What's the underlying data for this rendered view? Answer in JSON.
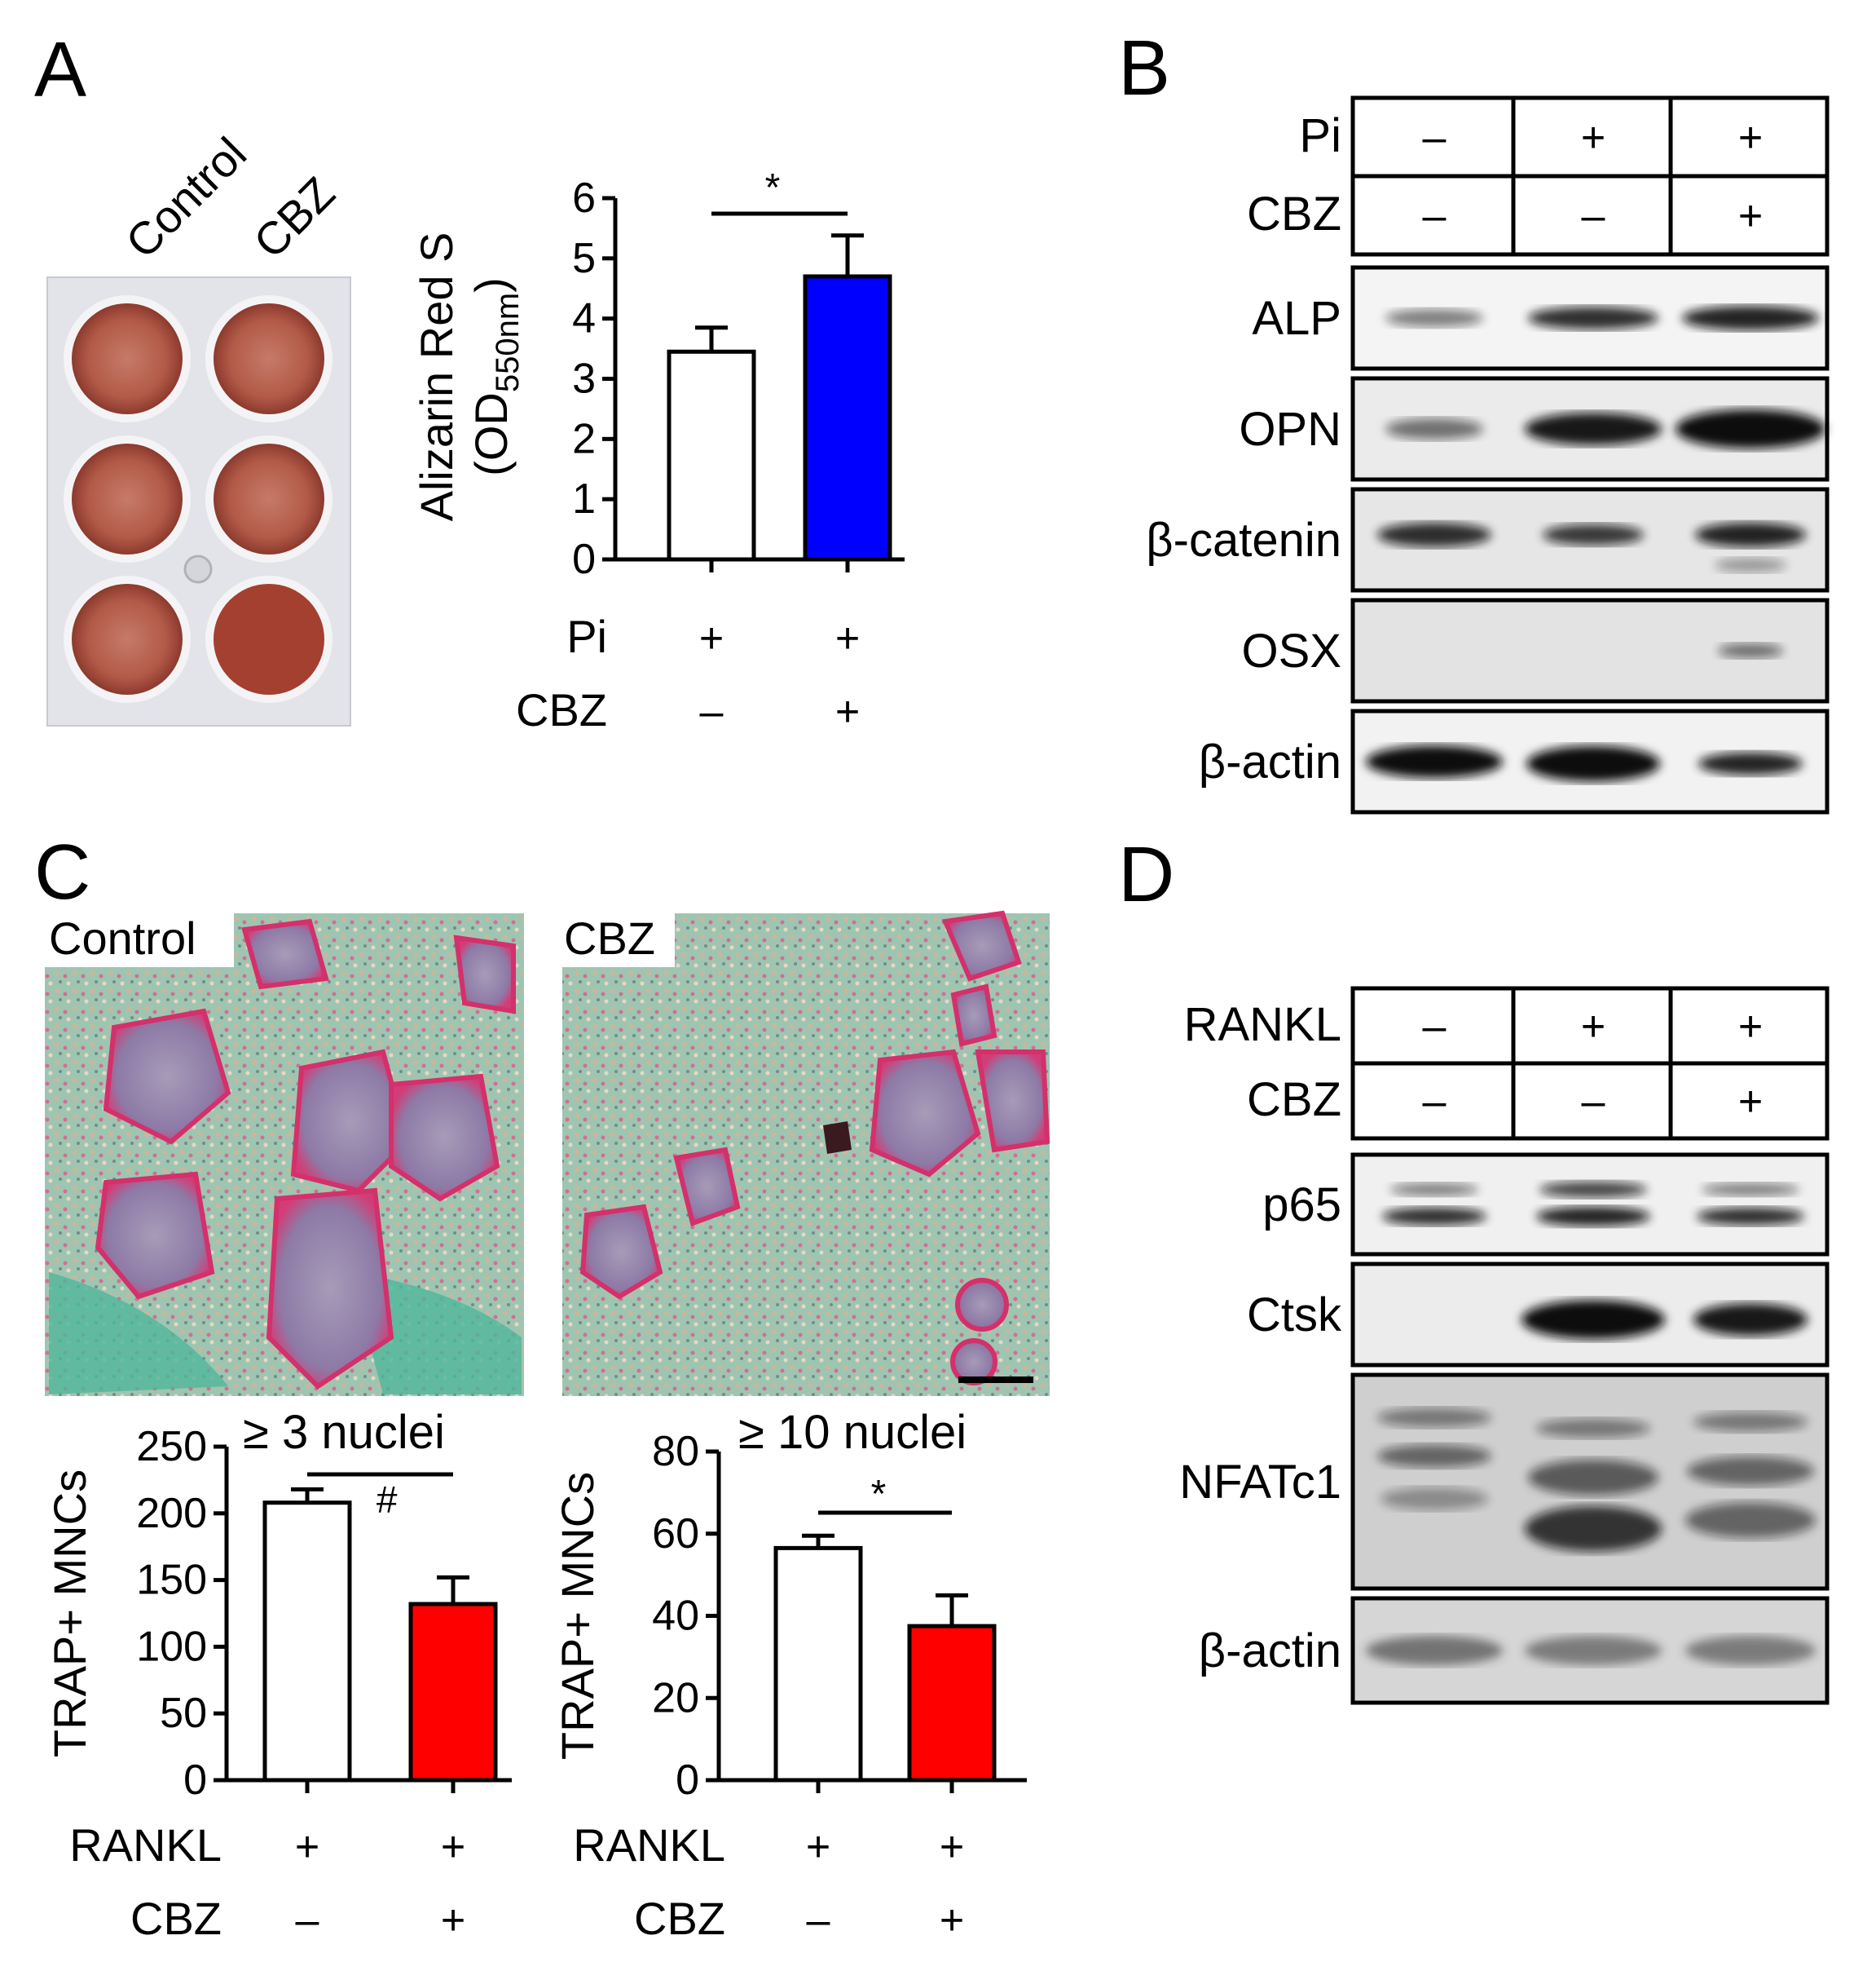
{
  "panels": {
    "A": {
      "letter": "A",
      "plate_columns": [
        "Control",
        "CBZ"
      ],
      "chart": {
        "type": "bar",
        "ylabel_line1": "Alizarin Red S",
        "ylabel_line2_prefix": "(OD",
        "ylabel_line2_sub": "550nm",
        "ylabel_line2_suffix": ")",
        "ylim": [
          0,
          6
        ],
        "yticks": [
          "0",
          "1",
          "2",
          "3",
          "4",
          "5",
          "6"
        ],
        "values": [
          3.45,
          4.7
        ],
        "errors": [
          0.4,
          0.68
        ],
        "bar_colors": [
          "#ffffff",
          "#0000ff"
        ],
        "significance": "*",
        "conditions": [
          {
            "label": "Pi",
            "values": [
              "+",
              "+"
            ]
          },
          {
            "label": "CBZ",
            "values": [
              "–",
              "+"
            ]
          }
        ]
      }
    },
    "B": {
      "letter": "B",
      "conditions": [
        {
          "label": "Pi",
          "values": [
            "–",
            "+",
            "+"
          ]
        },
        {
          "label": "CBZ",
          "values": [
            "–",
            "–",
            "+"
          ]
        }
      ],
      "blots": [
        "ALP",
        "OPN",
        "β-catenin",
        "OSX",
        "β-actin"
      ]
    },
    "C": {
      "letter": "C",
      "image_labels": [
        "Control",
        "CBZ"
      ],
      "charts": [
        {
          "type": "bar",
          "title": "≥  3 nuclei",
          "ylabel": "TRAP+ MNCs",
          "ylim": [
            0,
            250
          ],
          "yticks": [
            "0",
            "50",
            "100",
            "150",
            "200",
            "250"
          ],
          "values": [
            208,
            132
          ],
          "errors": [
            10,
            20
          ],
          "bar_colors": [
            "#ffffff",
            "#ff0000"
          ],
          "significance": "#",
          "conditions": [
            {
              "label": "RANKL",
              "values": [
                "+",
                "+"
              ]
            },
            {
              "label": "CBZ",
              "values": [
                "–",
                "+"
              ]
            }
          ]
        },
        {
          "type": "bar",
          "title": "≥  10 nuclei",
          "ylabel": "TRAP+ MNCs",
          "ylim": [
            0,
            80
          ],
          "yticks": [
            "0",
            "20",
            "40",
            "60",
            "80"
          ],
          "values": [
            56.5,
            37.5
          ],
          "errors": [
            3,
            7.5
          ],
          "bar_colors": [
            "#ffffff",
            "#ff0000"
          ],
          "significance": "*",
          "conditions": [
            {
              "label": "RANKL",
              "values": [
                "+",
                "+"
              ]
            },
            {
              "label": "CBZ",
              "values": [
                "–",
                "+"
              ]
            }
          ]
        }
      ]
    },
    "D": {
      "letter": "D",
      "conditions": [
        {
          "label": "RANKL",
          "values": [
            "–",
            "+",
            "+"
          ]
        },
        {
          "label": "CBZ",
          "values": [
            "–",
            "–",
            "+"
          ]
        }
      ],
      "blots": [
        "p65",
        "Ctsk",
        "NFATc1",
        "β-actin"
      ]
    }
  }
}
